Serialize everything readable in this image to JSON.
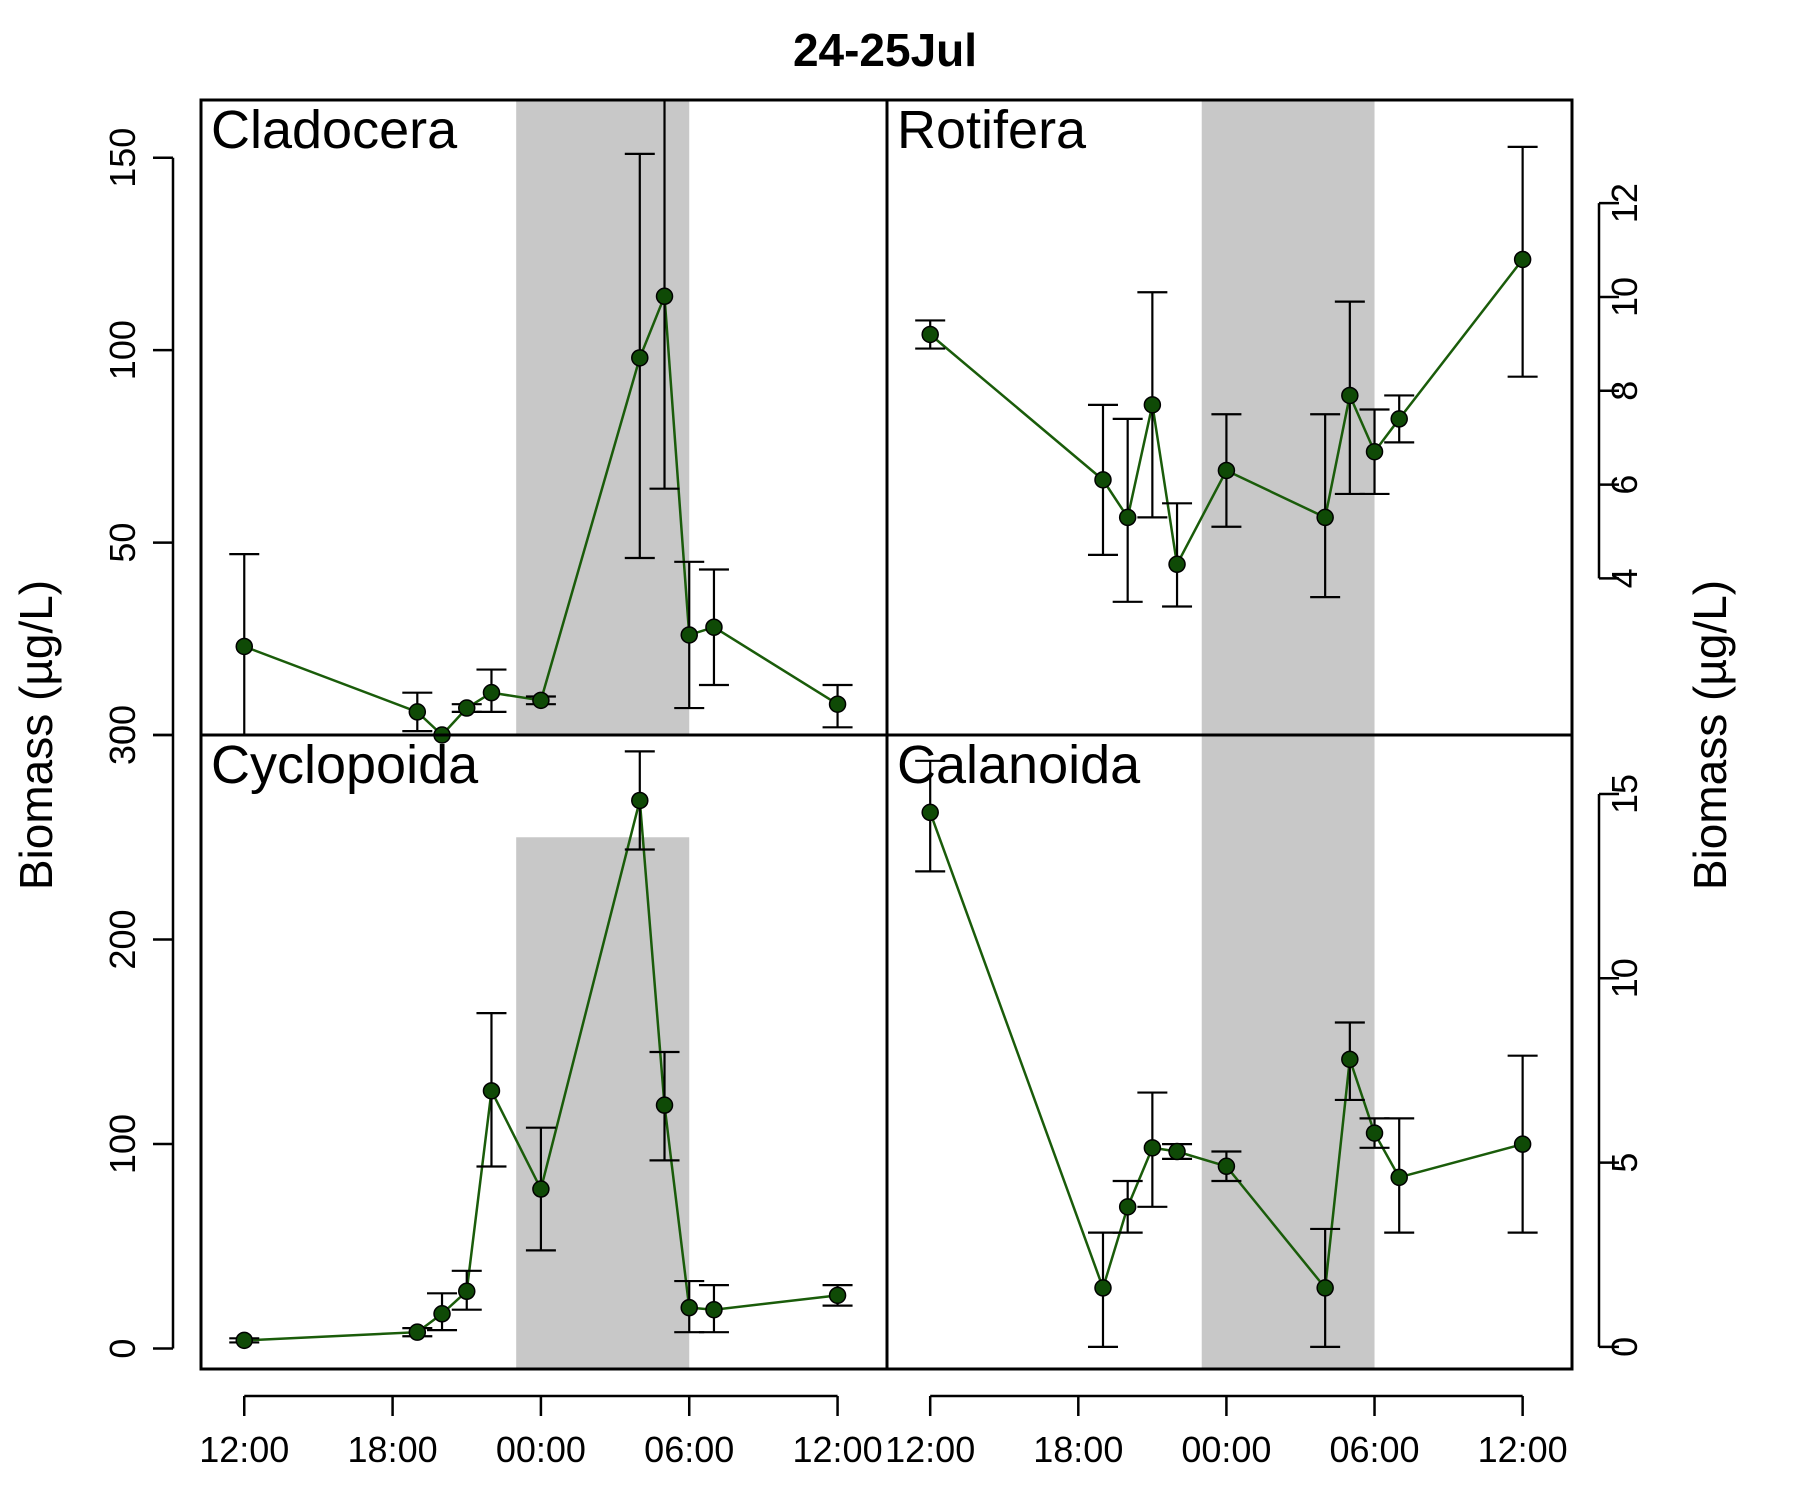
{
  "title": "24-25Jul",
  "ylabel_left": "Biomass (µg/L)",
  "ylabel_right": "Biomass (µg/L)",
  "colors": {
    "series": "#1a5c0a",
    "point": "#0f4a06",
    "night_shade": "#c8c8c8"
  },
  "chart_data": [
    {
      "type": "scatter",
      "panel": "Cladocera",
      "position": "top-left",
      "x_unit": "hours since 24 Jul 00:00",
      "x": [
        12,
        19,
        20,
        21,
        22,
        24,
        28,
        29,
        30,
        31,
        36
      ],
      "y": [
        23,
        6,
        0,
        7,
        11,
        9,
        98,
        114,
        26,
        28,
        8
      ],
      "y_err_low": [
        0,
        1,
        0,
        6,
        6,
        8,
        46,
        64,
        7,
        13,
        2
      ],
      "y_err_high": [
        47,
        11,
        0,
        8,
        17,
        10,
        151,
        165,
        45,
        43,
        13
      ],
      "ylim": [
        0,
        165
      ],
      "y_ticks": [
        0,
        50,
        100,
        150
      ],
      "y_axis_side": "left",
      "night": [
        23,
        30
      ]
    },
    {
      "type": "scatter",
      "panel": "Rotifera",
      "position": "top-right",
      "x_unit": "hours since 24 Jul 00:00",
      "x": [
        12,
        19,
        20,
        21,
        22,
        24,
        28,
        29,
        30,
        31,
        36
      ],
      "y": [
        9.2,
        6.1,
        5.3,
        7.7,
        4.3,
        6.3,
        5.3,
        7.9,
        6.7,
        7.4,
        10.8
      ],
      "y_err_low": [
        8.9,
        4.5,
        3.5,
        5.3,
        3.4,
        5.1,
        3.6,
        5.8,
        5.8,
        6.9,
        8.3
      ],
      "y_err_high": [
        9.5,
        7.7,
        7.4,
        10.1,
        5.6,
        7.5,
        7.5,
        9.9,
        7.6,
        7.9,
        13.2
      ],
      "ylim": [
        0.66,
        14.2
      ],
      "y_ticks": [
        4,
        6,
        8,
        10,
        12
      ],
      "y_axis_side": "right",
      "night": [
        23,
        30
      ]
    },
    {
      "type": "scatter",
      "panel": "Cyclopoida",
      "position": "bottom-left",
      "x_unit": "hours since 24 Jul 00:00",
      "x": [
        12,
        19,
        20,
        21,
        22,
        24,
        28,
        29,
        30,
        31,
        36
      ],
      "y": [
        4,
        8,
        17,
        28,
        126,
        78,
        268,
        119,
        20,
        19,
        26
      ],
      "y_err_low": [
        3,
        6,
        9,
        19,
        89,
        48,
        244,
        92,
        8,
        8,
        21
      ],
      "y_err_high": [
        5,
        10,
        27,
        38,
        164,
        108,
        292,
        145,
        33,
        31,
        31
      ],
      "ylim": [
        -10,
        300
      ],
      "y_ticks": [
        0,
        100,
        200,
        300
      ],
      "y_axis_side": "left",
      "night": [
        23,
        30
      ],
      "night_ymax": 250
    },
    {
      "type": "scatter",
      "panel": "Calanoida",
      "position": "bottom-right",
      "x_unit": "hours since 24 Jul 00:00",
      "x": [
        12,
        19,
        20,
        21,
        22,
        24,
        28,
        29,
        30,
        31,
        36
      ],
      "y": [
        14.5,
        1.6,
        3.8,
        5.4,
        5.3,
        4.9,
        1.6,
        7.8,
        5.8,
        4.6,
        5.5
      ],
      "y_err_low": [
        12.9,
        0,
        3.1,
        3.8,
        5.1,
        4.5,
        0,
        6.7,
        5.4,
        3.1,
        3.1
      ],
      "y_err_high": [
        15.9,
        3.1,
        4.5,
        6.9,
        5.5,
        5.3,
        3.2,
        8.8,
        6.2,
        6.2,
        7.9
      ],
      "ylim": [
        -0.6,
        16.6
      ],
      "y_ticks": [
        0,
        5,
        10,
        15
      ],
      "y_axis_side": "right",
      "night": [
        23,
        30
      ]
    }
  ],
  "x_axis": {
    "xlim": [
      10.25,
      38
    ],
    "ticks": [
      12,
      18,
      24,
      30,
      36
    ],
    "tick_labels": [
      "12:00",
      "18:00",
      "00:00",
      "06:00",
      "12:00"
    ]
  }
}
